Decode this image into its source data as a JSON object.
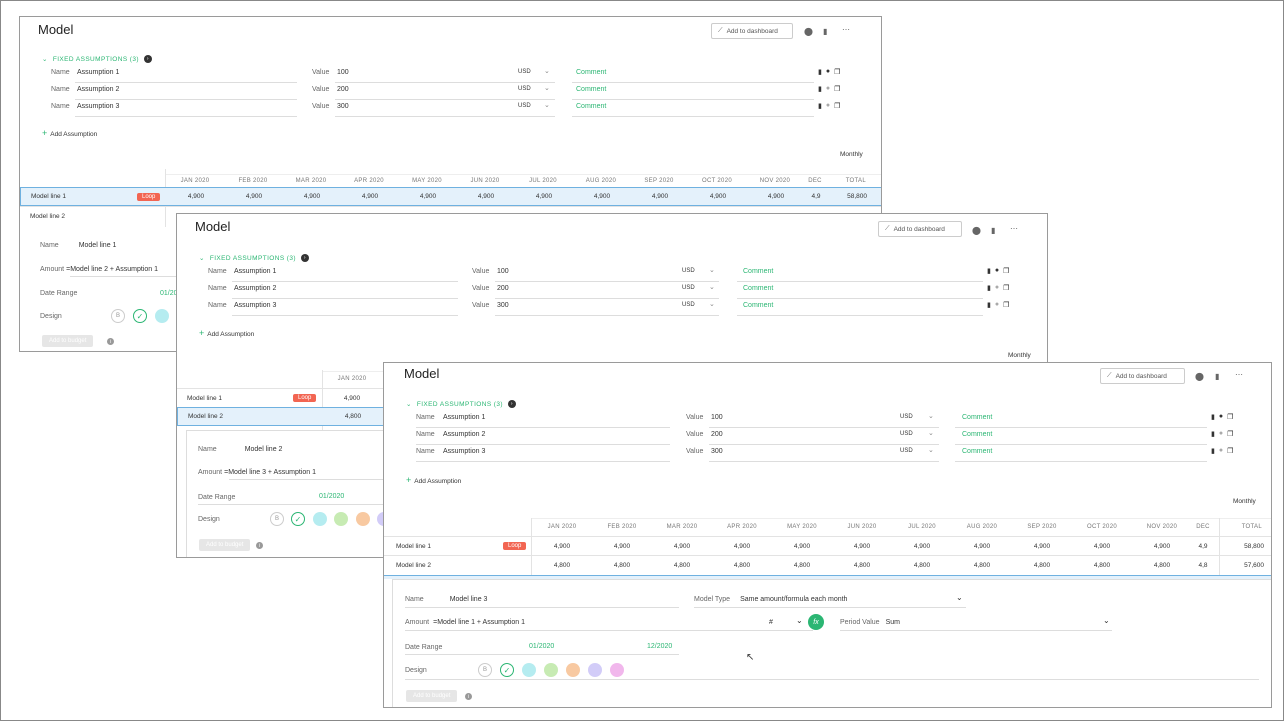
{
  "title": "Model",
  "add_to_dashboard": "Add to dashboard",
  "fixed_assumptions_label": "FIXED ASSUMPTIONS (3)",
  "add_assumption": "Add Assumption",
  "name_label": "Name",
  "value_label": "Value",
  "currency": "USD",
  "comment_label": "Comment",
  "assumptions": [
    {
      "name": "Assumption 1",
      "value": "100"
    },
    {
      "name": "Assumption 2",
      "value": "200"
    },
    {
      "name": "Assumption 3",
      "value": "300"
    }
  ],
  "period": "Monthly",
  "months": [
    "JAN 2020",
    "FEB 2020",
    "MAR 2020",
    "APR 2020",
    "MAY 2020",
    "JUN 2020",
    "JUL 2020",
    "AUG 2020",
    "SEP 2020",
    "OCT 2020",
    "NOV 2020",
    "DEC"
  ],
  "total_label": "TOTAL",
  "loop_label": "Loop",
  "lines": [
    {
      "name": "Model line 1",
      "values": [
        "4,900",
        "4,900",
        "4,900",
        "4,900",
        "4,900",
        "4,900",
        "4,900",
        "4,900",
        "4,900",
        "4,900",
        "4,900",
        "4,9"
      ],
      "total": "58,800"
    },
    {
      "name": "Model line 2",
      "values": [
        "4,800",
        "4,800",
        "4,800",
        "4,800",
        "4,800",
        "4,800",
        "4,800",
        "4,800",
        "4,800",
        "4,800",
        "4,800",
        "4,8"
      ],
      "total": "57,600"
    }
  ],
  "editor": {
    "name_label": "Name",
    "amount_label": "Amount",
    "date_range_label": "Date Range",
    "design_label": "Design",
    "add_to_budget": "Add to budget",
    "model_type_label": "Model Type",
    "period_value_label": "Period Value",
    "b_label": "B"
  },
  "editor1": {
    "name": "Model line 1",
    "amount": "=Model line 2 + Assumption 1",
    "start": "01/20"
  },
  "editor2": {
    "name": "Model line 2",
    "amount": "=Model line 3 + Assumption 1",
    "start": "01/2020"
  },
  "editor3": {
    "name": "Model line 3",
    "amount": "=Model line 1 + Assumption 1",
    "start": "01/2020",
    "end": "12/2020",
    "model_type": "Same amount/formula each month",
    "unit": "#",
    "period_value": "Sum",
    "fx": "fx"
  },
  "colors": {
    "accent": "#2bb673",
    "loop": "#f26552",
    "selected_row": "#e4f1fb"
  },
  "design_colors": [
    "#b5ecf0",
    "#c7ebb3",
    "#f8c9a1",
    "#d2ccf8",
    "#f1b7ec"
  ]
}
